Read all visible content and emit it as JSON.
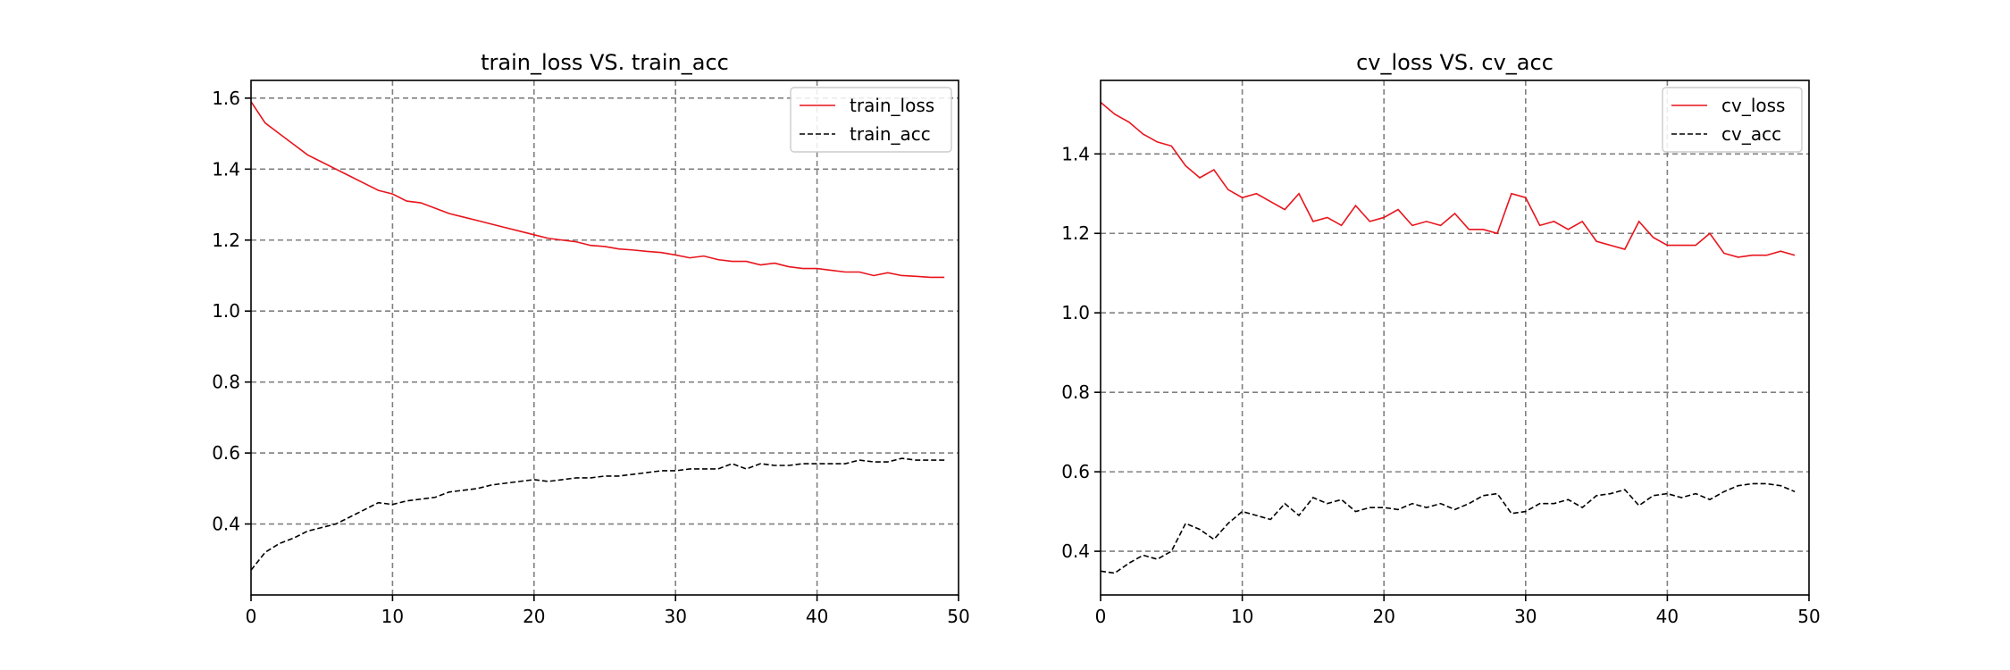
{
  "colors": {
    "loss": "#e8141c",
    "acc": "#000000",
    "grid": "#808080",
    "legend_border": "#cccccc"
  },
  "chart_data": [
    {
      "type": "line",
      "title": "train_loss VS. train_acc",
      "xlabel": "",
      "ylabel": "",
      "xlim": [
        0,
        50
      ],
      "ylim": [
        0.2,
        1.65
      ],
      "xticks": [
        0,
        10,
        20,
        30,
        40,
        50
      ],
      "xtick_labels": [
        "0",
        "10",
        "20",
        "30",
        "40",
        "50"
      ],
      "yticks": [
        0.4,
        0.6,
        0.8,
        1.0,
        1.2,
        1.4,
        1.6
      ],
      "ytick_labels": [
        "0.4",
        "0.6",
        "0.8",
        "1.0",
        "1.2",
        "1.4",
        "1.6"
      ],
      "grid": true,
      "legend_position": "top-right",
      "x": [
        0,
        1,
        2,
        3,
        4,
        5,
        6,
        7,
        8,
        9,
        10,
        11,
        12,
        13,
        14,
        15,
        16,
        17,
        18,
        19,
        20,
        21,
        22,
        23,
        24,
        25,
        26,
        27,
        28,
        29,
        30,
        31,
        32,
        33,
        34,
        35,
        36,
        37,
        38,
        39,
        40,
        41,
        42,
        43,
        44,
        45,
        46,
        47,
        48,
        49
      ],
      "series": [
        {
          "name": "train_loss",
          "style": "solid",
          "values": [
            1.59,
            1.53,
            1.5,
            1.47,
            1.44,
            1.42,
            1.4,
            1.38,
            1.36,
            1.34,
            1.33,
            1.31,
            1.305,
            1.29,
            1.275,
            1.265,
            1.255,
            1.245,
            1.235,
            1.225,
            1.215,
            1.205,
            1.2,
            1.195,
            1.185,
            1.182,
            1.175,
            1.172,
            1.168,
            1.165,
            1.158,
            1.15,
            1.155,
            1.145,
            1.14,
            1.14,
            1.13,
            1.135,
            1.125,
            1.12,
            1.12,
            1.115,
            1.11,
            1.11,
            1.1,
            1.108,
            1.1,
            1.098,
            1.095,
            1.095
          ]
        },
        {
          "name": "train_acc",
          "style": "dashed",
          "values": [
            0.27,
            0.32,
            0.345,
            0.36,
            0.38,
            0.39,
            0.4,
            0.42,
            0.44,
            0.46,
            0.455,
            0.465,
            0.47,
            0.475,
            0.49,
            0.495,
            0.5,
            0.51,
            0.515,
            0.52,
            0.525,
            0.52,
            0.525,
            0.53,
            0.53,
            0.535,
            0.535,
            0.54,
            0.545,
            0.55,
            0.55,
            0.555,
            0.555,
            0.555,
            0.57,
            0.555,
            0.57,
            0.565,
            0.565,
            0.57,
            0.57,
            0.57,
            0.57,
            0.58,
            0.575,
            0.575,
            0.585,
            0.58,
            0.58,
            0.58
          ]
        }
      ]
    },
    {
      "type": "line",
      "title": "cv_loss VS. cv_acc",
      "xlabel": "",
      "ylabel": "",
      "xlim": [
        0,
        50
      ],
      "ylim": [
        0.29,
        1.585
      ],
      "xticks": [
        0,
        10,
        20,
        30,
        40,
        50
      ],
      "xtick_labels": [
        "0",
        "10",
        "20",
        "30",
        "40",
        "50"
      ],
      "yticks": [
        0.4,
        0.6,
        0.8,
        1.0,
        1.2,
        1.4
      ],
      "ytick_labels": [
        "0.4",
        "0.6",
        "0.8",
        "1.0",
        "1.2",
        "1.4"
      ],
      "grid": true,
      "legend_position": "top-right",
      "x": [
        0,
        1,
        2,
        3,
        4,
        5,
        6,
        7,
        8,
        9,
        10,
        11,
        12,
        13,
        14,
        15,
        16,
        17,
        18,
        19,
        20,
        21,
        22,
        23,
        24,
        25,
        26,
        27,
        28,
        29,
        30,
        31,
        32,
        33,
        34,
        35,
        36,
        37,
        38,
        39,
        40,
        41,
        42,
        43,
        44,
        45,
        46,
        47,
        48,
        49
      ],
      "series": [
        {
          "name": "cv_loss",
          "style": "solid",
          "values": [
            1.53,
            1.5,
            1.48,
            1.45,
            1.43,
            1.42,
            1.37,
            1.34,
            1.36,
            1.31,
            1.29,
            1.3,
            1.28,
            1.26,
            1.3,
            1.23,
            1.24,
            1.22,
            1.27,
            1.23,
            1.24,
            1.26,
            1.22,
            1.23,
            1.22,
            1.25,
            1.21,
            1.21,
            1.2,
            1.3,
            1.29,
            1.22,
            1.23,
            1.21,
            1.23,
            1.18,
            1.17,
            1.16,
            1.23,
            1.19,
            1.17,
            1.17,
            1.17,
            1.2,
            1.15,
            1.14,
            1.145,
            1.145,
            1.155,
            1.145
          ]
        },
        {
          "name": "cv_acc",
          "style": "dashed",
          "values": [
            0.35,
            0.345,
            0.37,
            0.39,
            0.38,
            0.4,
            0.47,
            0.455,
            0.43,
            0.47,
            0.5,
            0.49,
            0.48,
            0.52,
            0.49,
            0.535,
            0.52,
            0.53,
            0.5,
            0.51,
            0.51,
            0.505,
            0.52,
            0.51,
            0.52,
            0.505,
            0.52,
            0.54,
            0.545,
            0.495,
            0.5,
            0.52,
            0.52,
            0.53,
            0.51,
            0.54,
            0.545,
            0.555,
            0.515,
            0.54,
            0.545,
            0.535,
            0.545,
            0.53,
            0.55,
            0.565,
            0.57,
            0.57,
            0.565,
            0.55
          ]
        }
      ]
    }
  ]
}
